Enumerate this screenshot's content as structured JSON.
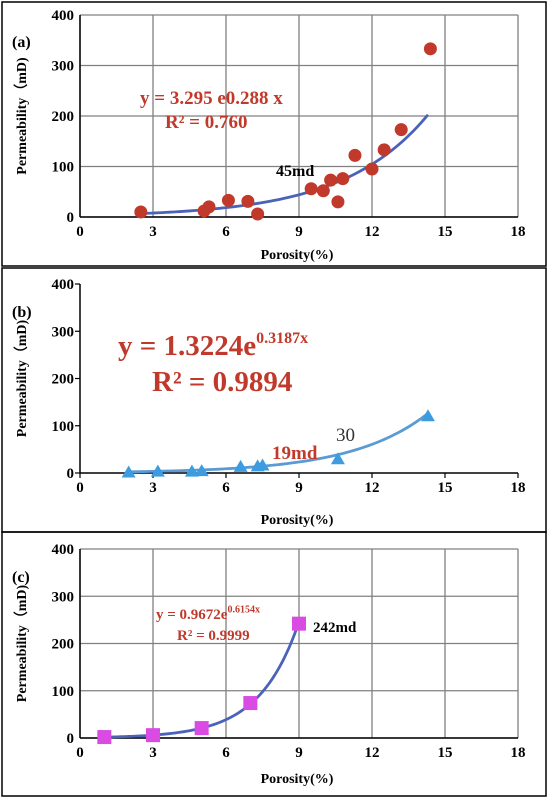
{
  "chart_data": [
    {
      "type": "scatter",
      "panel_label": "(a)",
      "xlabel": "Porosity(%)",
      "ylabel": "Permeability（mD)",
      "xlim": [
        0,
        18
      ],
      "ylim": [
        0,
        400
      ],
      "xticks": [
        "0",
        "3",
        "6",
        "9",
        "12",
        "15",
        "18"
      ],
      "yticks": [
        "0",
        "100",
        "200",
        "300",
        "400"
      ],
      "grid": true,
      "marker": "circle",
      "marker_color": "#c0392b",
      "trend_color": "#4a63b8",
      "trend": {
        "a": 3.295,
        "b": 0.288,
        "x_range": [
          2.5,
          14.3
        ]
      },
      "equation_line1": "y = 3.295 e0.288 x",
      "equation_line2": "R² = 0.760",
      "annotation": "45md",
      "points": [
        {
          "x": 2.5,
          "y": 10
        },
        {
          "x": 5.1,
          "y": 12
        },
        {
          "x": 5.3,
          "y": 20
        },
        {
          "x": 6.1,
          "y": 33
        },
        {
          "x": 6.9,
          "y": 31
        },
        {
          "x": 7.3,
          "y": 6
        },
        {
          "x": 9.5,
          "y": 56
        },
        {
          "x": 10.0,
          "y": 52
        },
        {
          "x": 10.3,
          "y": 73
        },
        {
          "x": 10.6,
          "y": 30
        },
        {
          "x": 10.8,
          "y": 76
        },
        {
          "x": 11.3,
          "y": 122
        },
        {
          "x": 12.0,
          "y": 95
        },
        {
          "x": 12.5,
          "y": 133
        },
        {
          "x": 13.2,
          "y": 173
        },
        {
          "x": 14.4,
          "y": 333
        }
      ]
    },
    {
      "type": "scatter",
      "panel_label": "(b)",
      "xlabel": "Porosity(%)",
      "ylabel": "Permeability（mD)",
      "xlim": [
        0,
        18
      ],
      "ylim": [
        0,
        400
      ],
      "xticks": [
        "0",
        "3",
        "6",
        "9",
        "12",
        "15",
        "18"
      ],
      "yticks": [
        "0",
        "100",
        "200",
        "300",
        "400"
      ],
      "grid": false,
      "marker": "triangle",
      "marker_color": "#3d9be0",
      "trend_color": "#5b9bd5",
      "trend": {
        "a": 1.3224,
        "b": 0.3187,
        "x_range": [
          2.0,
          14.3
        ]
      },
      "equation_line1": "y = 1.3224e",
      "equation_exp": "0.3187x",
      "equation_line2": "R² = 0.9894",
      "annotation": "19md",
      "annotation2": "30",
      "points": [
        {
          "x": 2.0,
          "y": 1
        },
        {
          "x": 3.2,
          "y": 3
        },
        {
          "x": 4.6,
          "y": 3
        },
        {
          "x": 5.0,
          "y": 4
        },
        {
          "x": 6.6,
          "y": 13
        },
        {
          "x": 7.3,
          "y": 14
        },
        {
          "x": 7.5,
          "y": 16
        },
        {
          "x": 10.6,
          "y": 29
        },
        {
          "x": 14.3,
          "y": 120
        }
      ]
    },
    {
      "type": "scatter",
      "panel_label": "(c)",
      "xlabel": "Porosity(%)",
      "ylabel": "Permeability（mD)",
      "xlim": [
        0,
        18
      ],
      "ylim": [
        0,
        400
      ],
      "xticks": [
        "0",
        "3",
        "6",
        "9",
        "12",
        "15",
        "18"
      ],
      "yticks": [
        "0",
        "100",
        "200",
        "300",
        "400"
      ],
      "grid": true,
      "marker": "square",
      "marker_color": "#d94be3",
      "trend_color": "#4a63b8",
      "trend": {
        "a": 0.9672,
        "b": 0.6154,
        "x_range": [
          1.0,
          9.0
        ]
      },
      "equation_line1": "y = 0.9672e",
      "equation_exp": "0.6154x",
      "equation_line2": "R² = 0.9999",
      "annotation": "242md",
      "points": [
        {
          "x": 1.0,
          "y": 2
        },
        {
          "x": 3.0,
          "y": 6
        },
        {
          "x": 5.0,
          "y": 21
        },
        {
          "x": 7.0,
          "y": 74
        },
        {
          "x": 9.0,
          "y": 242
        }
      ]
    }
  ]
}
